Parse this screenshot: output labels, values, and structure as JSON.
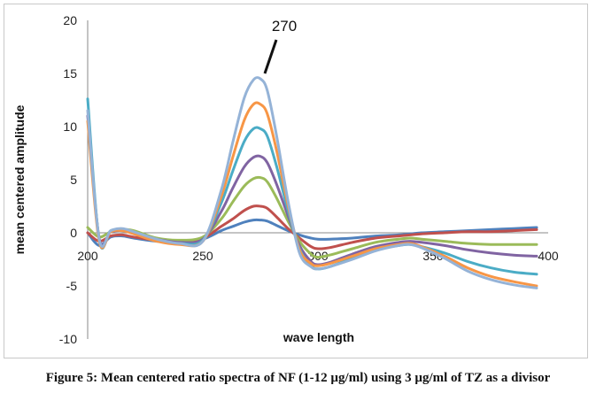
{
  "caption": "Figure 5: Mean centered ratio spectra of NF (1-12 µg/ml) using 3 µg/ml of TZ as a divisor",
  "chart_data": {
    "type": "line",
    "xlabel": "wave length",
    "ylabel": "mean centered amplitude",
    "xlim": [
      200,
      400
    ],
    "ylim": [
      -10,
      20
    ],
    "xticks": [
      200,
      250,
      300,
      350,
      400
    ],
    "yticks": [
      -10,
      -5,
      0,
      5,
      10,
      15,
      20
    ],
    "grid": false,
    "legend": "none",
    "annotations": [
      {
        "text": "270",
        "x": 275,
        "y": 14.5
      }
    ],
    "x": [
      200,
      205,
      210,
      215,
      220,
      230,
      240,
      250,
      258,
      263,
      268,
      272,
      275,
      278,
      282,
      287,
      292,
      297,
      300,
      305,
      315,
      325,
      335,
      340,
      345,
      355,
      365,
      375,
      385,
      395
    ],
    "series": [
      {
        "color": "#4f81bd",
        "values": [
          0,
          -1.2,
          -0.4,
          -0.3,
          -0.5,
          -0.8,
          -0.9,
          -0.6,
          0.2,
          0.6,
          1.0,
          1.2,
          1.2,
          1.1,
          0.7,
          0.2,
          -0.2,
          -0.5,
          -0.6,
          -0.6,
          -0.5,
          -0.3,
          -0.2,
          -0.1,
          0,
          0.1,
          0.2,
          0.3,
          0.4,
          0.5
        ]
      },
      {
        "color": "#c0504d",
        "values": [
          0,
          -0.8,
          -0.3,
          -0.2,
          -0.4,
          -0.7,
          -0.8,
          -0.5,
          0.6,
          1.3,
          2.1,
          2.5,
          2.5,
          2.3,
          1.5,
          0.4,
          -0.5,
          -1.3,
          -1.5,
          -1.4,
          -0.9,
          -0.5,
          -0.3,
          -0.2,
          -0.1,
          0,
          0.1,
          0.1,
          0.2,
          0.3
        ]
      },
      {
        "color": "#9bbb59",
        "values": [
          0.5,
          -0.4,
          0.1,
          0.3,
          0.2,
          -0.5,
          -0.7,
          -0.4,
          1.3,
          2.9,
          4.4,
          5.1,
          5.2,
          4.8,
          3.3,
          1.1,
          -0.8,
          -2.0,
          -2.3,
          -2.1,
          -1.5,
          -0.9,
          -0.6,
          -0.5,
          -0.6,
          -0.8,
          -1.0,
          -1.1,
          -1.1,
          -1.1
        ]
      },
      {
        "color": "#8064a2",
        "values": [
          11,
          -0.5,
          0.1,
          0.2,
          0,
          -0.6,
          -0.9,
          -0.6,
          2.0,
          4.2,
          6.2,
          7.1,
          7.2,
          6.6,
          4.6,
          1.6,
          -1.2,
          -2.7,
          -3.0,
          -2.8,
          -2.0,
          -1.3,
          -0.9,
          -0.8,
          -0.9,
          -1.2,
          -1.6,
          -1.9,
          -2.1,
          -2.2
        ]
      },
      {
        "color": "#4bacc6",
        "values": [
          12.6,
          -0.7,
          0.2,
          0.3,
          0,
          -0.7,
          -1.0,
          -0.7,
          2.8,
          5.8,
          8.6,
          9.8,
          9.8,
          9.1,
          6.3,
          2.1,
          -1.5,
          -3.1,
          -3.4,
          -3.2,
          -2.4,
          -1.6,
          -1.2,
          -1.1,
          -1.3,
          -1.9,
          -2.7,
          -3.3,
          -3.7,
          -3.9
        ]
      },
      {
        "color": "#f79646",
        "values": [
          10.5,
          -0.8,
          0.1,
          0.2,
          -0.1,
          -0.8,
          -1.1,
          -0.8,
          3.4,
          7.1,
          10.6,
          12.1,
          12.1,
          11.2,
          7.8,
          2.6,
          -1.6,
          -2.9,
          -3.1,
          -2.9,
          -2.2,
          -1.5,
          -1.1,
          -1.0,
          -1.3,
          -2.2,
          -3.3,
          -4.1,
          -4.6,
          -5.0
        ]
      },
      {
        "color": "#95b3d7",
        "values": [
          11.5,
          -0.6,
          0.2,
          0.4,
          0.1,
          -0.6,
          -1.0,
          -0.8,
          4.0,
          8.5,
          12.7,
          14.4,
          14.5,
          13.4,
          9.2,
          3.0,
          -1.9,
          -3.2,
          -3.4,
          -3.2,
          -2.5,
          -1.7,
          -1.2,
          -1.1,
          -1.4,
          -2.4,
          -3.6,
          -4.4,
          -4.9,
          -5.2
        ]
      }
    ]
  }
}
